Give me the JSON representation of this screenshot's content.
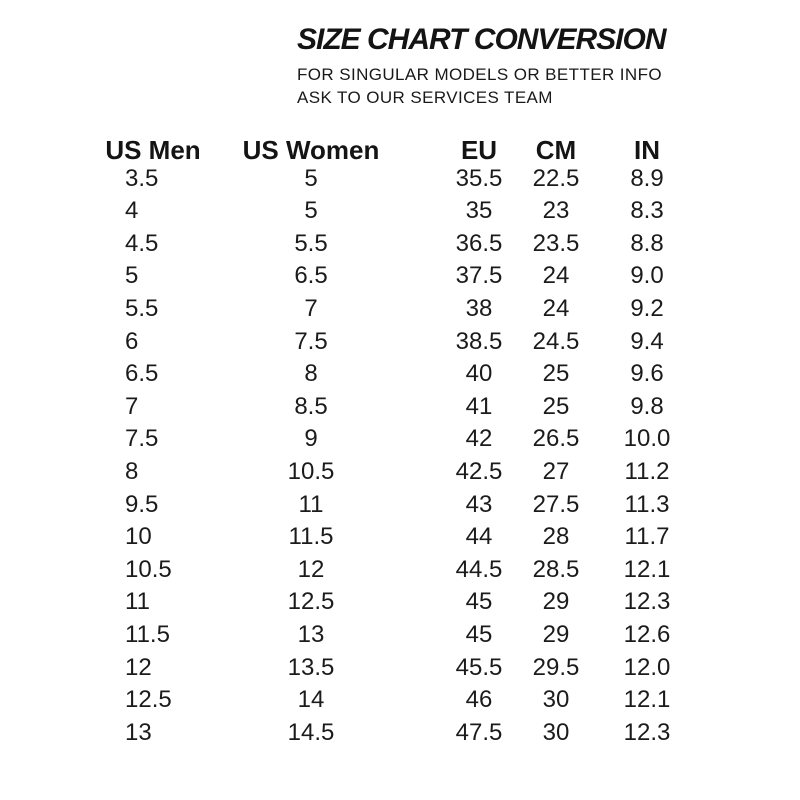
{
  "header": {
    "title": "SIZE CHART CONVERSION",
    "subtitle_line1": "FOR SINGULAR MODELS OR BETTER INFO",
    "subtitle_line2": "ASK TO OUR SERVICES TEAM"
  },
  "colors": {
    "text": "#1a1a1a",
    "background": "#ffffff"
  },
  "chart_data": {
    "type": "table",
    "title": "SIZE CHART CONVERSION",
    "columns": [
      "US Men",
      "US Women",
      "EU",
      "CM",
      "IN"
    ],
    "rows": [
      [
        "3.5",
        "5",
        "35.5",
        "22.5",
        "8.9"
      ],
      [
        "4",
        "5",
        "35",
        "23",
        "8.3"
      ],
      [
        "4.5",
        "5.5",
        "36.5",
        "23.5",
        "8.8"
      ],
      [
        "5",
        "6.5",
        "37.5",
        "24",
        "9.0"
      ],
      [
        "5.5",
        "7",
        "38",
        "24",
        "9.2"
      ],
      [
        "6",
        "7.5",
        "38.5",
        "24.5",
        "9.4"
      ],
      [
        "6.5",
        "8",
        "40",
        "25",
        "9.6"
      ],
      [
        "7",
        "8.5",
        "41",
        "25",
        "9.8"
      ],
      [
        "7.5",
        "9",
        "42",
        "26.5",
        "10.0"
      ],
      [
        "8",
        "10.5",
        "42.5",
        "27",
        "11.2"
      ],
      [
        "9.5",
        "11",
        "43",
        "27.5",
        "11.3"
      ],
      [
        "10",
        "11.5",
        "44",
        "28",
        "11.7"
      ],
      [
        "10.5",
        "12",
        "44.5",
        "28.5",
        "12.1"
      ],
      [
        "11",
        "12.5",
        "45",
        "29",
        "12.3"
      ],
      [
        "11.5",
        "13",
        "45",
        "29",
        "12.6"
      ],
      [
        "12",
        "13.5",
        "45.5",
        "29.5",
        "12.0"
      ],
      [
        "12.5",
        "14",
        "46",
        "30",
        "12.1"
      ],
      [
        "13",
        "14.5",
        "47.5",
        "30",
        "12.3"
      ]
    ]
  }
}
